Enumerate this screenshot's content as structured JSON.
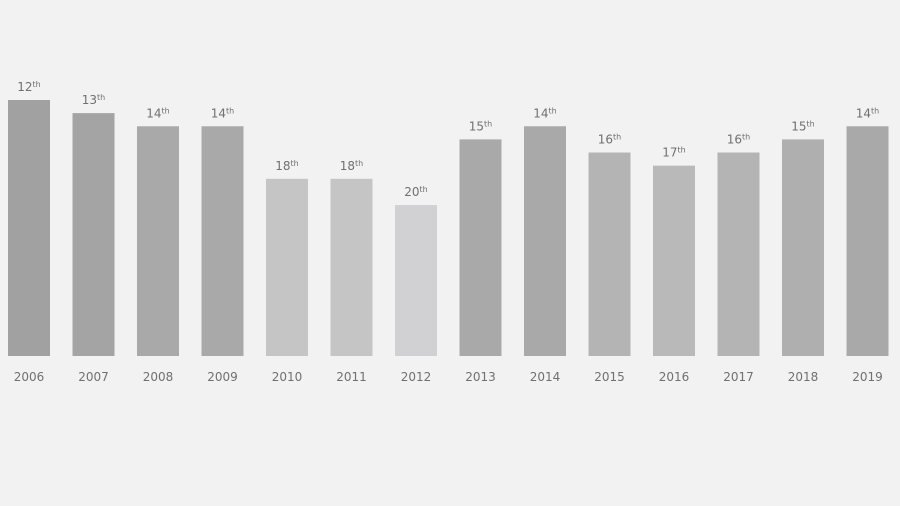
{
  "chart_data": {
    "type": "bar",
    "categories": [
      "2006",
      "2007",
      "2008",
      "2009",
      "2010",
      "2011",
      "2012",
      "2013",
      "2014",
      "2015",
      "2016",
      "2017",
      "2018",
      "2019"
    ],
    "values": [
      12,
      13,
      14,
      14,
      18,
      18,
      20,
      15,
      14,
      16,
      17,
      16,
      15,
      14
    ],
    "value_labels": [
      "12th",
      "13th",
      "14th",
      "14th",
      "18th",
      "18th",
      "20th",
      "15th",
      "14th",
      "16th",
      "17th",
      "16th",
      "15th",
      "14th"
    ],
    "colors": [
      "#a1a1a1",
      "#a4a4a4",
      "#a9a9aa",
      "#a9a9aa",
      "#c5c5c5",
      "#c5c5c5",
      "#d1d1d3",
      "#a9a9aa",
      "#a9a9aa",
      "#b4b4b5",
      "#b9b9ba",
      "#b4b4b5",
      "#afafb0",
      "#a9a9aa"
    ],
    "ylim": [
      31.5,
      12
    ]
  }
}
